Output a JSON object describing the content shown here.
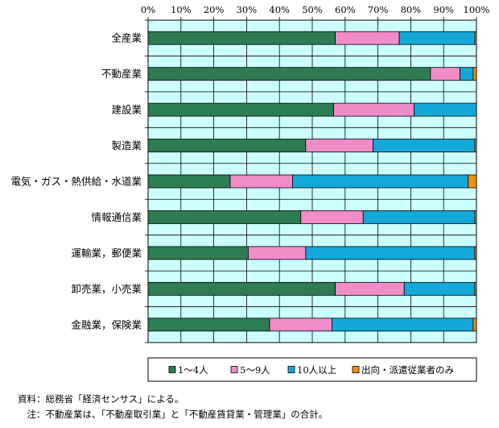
{
  "chart_data": {
    "type": "bar",
    "orientation": "horizontal",
    "stacked": true,
    "percent": true,
    "categories": [
      "全産業",
      "不動産業",
      "建設業",
      "製造業",
      "電気・ガス・熱供給・水道業",
      "情報通信業",
      "運輸業，郵便業",
      "卸売業，小売業",
      "金融業，保険業"
    ],
    "series": [
      {
        "name": "1～4人",
        "color": "#2e7d52",
        "values": [
          57.0,
          86.0,
          56.5,
          48.0,
          25.0,
          46.5,
          30.5,
          57.0,
          37.0
        ]
      },
      {
        "name": "5～9人",
        "color": "#f08cc8",
        "values": [
          19.5,
          9.0,
          24.5,
          20.5,
          19.0,
          19.0,
          17.5,
          21.0,
          19.0
        ]
      },
      {
        "name": "10人以上",
        "color": "#13a8d8",
        "values": [
          23.0,
          4.0,
          19.0,
          31.0,
          53.5,
          34.0,
          51.5,
          21.5,
          43.0
        ]
      },
      {
        "name": "出向・派遣従業者のみ",
        "color": "#f0900c",
        "values": [
          0.5,
          1.0,
          0.0,
          0.5,
          2.5,
          0.5,
          0.5,
          0.5,
          1.0
        ]
      }
    ],
    "xlim": [
      0,
      100
    ],
    "xticks": [
      "0%",
      "10%",
      "20%",
      "30%",
      "40%",
      "50%",
      "60%",
      "70%",
      "80%",
      "90%",
      "100%"
    ],
    "grid": true,
    "plot_background": "#ccffff",
    "legend_position": "bottom",
    "title": "",
    "xlabel": "",
    "ylabel": ""
  },
  "notes": [
    "資料：総務省「経済センサス」による。",
    "　注：不動産業は、「不動産取引業」と「不動産賃貸業・管理業」の合計。"
  ]
}
